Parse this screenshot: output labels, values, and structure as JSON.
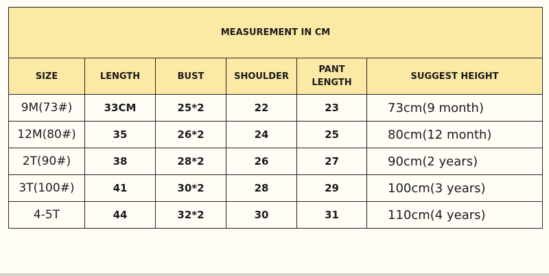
{
  "title": "MEASUREMENT IN CM",
  "columns": [
    "SIZE",
    "LENGTH",
    "BUST",
    "SHOULDER",
    "PANT LENGTH",
    "SUGGEST HEIGHT"
  ],
  "rows": [
    [
      "9M(73#)",
      "33CM",
      "25*2",
      "22",
      "23",
      "73cm(9 month)"
    ],
    [
      "12M(80#)",
      "35",
      "26*2",
      "24",
      "25",
      "80cm(12 month)"
    ],
    [
      "2T(90#)",
      "38",
      "28*2",
      "26",
      "27",
      "90cm(2 years)"
    ],
    [
      "3T(100#)",
      "41",
      "30*2",
      "28",
      "29",
      "100cm(3 years)"
    ],
    [
      "4-5T",
      "44",
      "32*2",
      "30",
      "31",
      "110cm(4 years)"
    ]
  ],
  "colors": {
    "header_bg": "#fde9a6",
    "body_bg": "#fffdf6",
    "border": "#222222"
  }
}
